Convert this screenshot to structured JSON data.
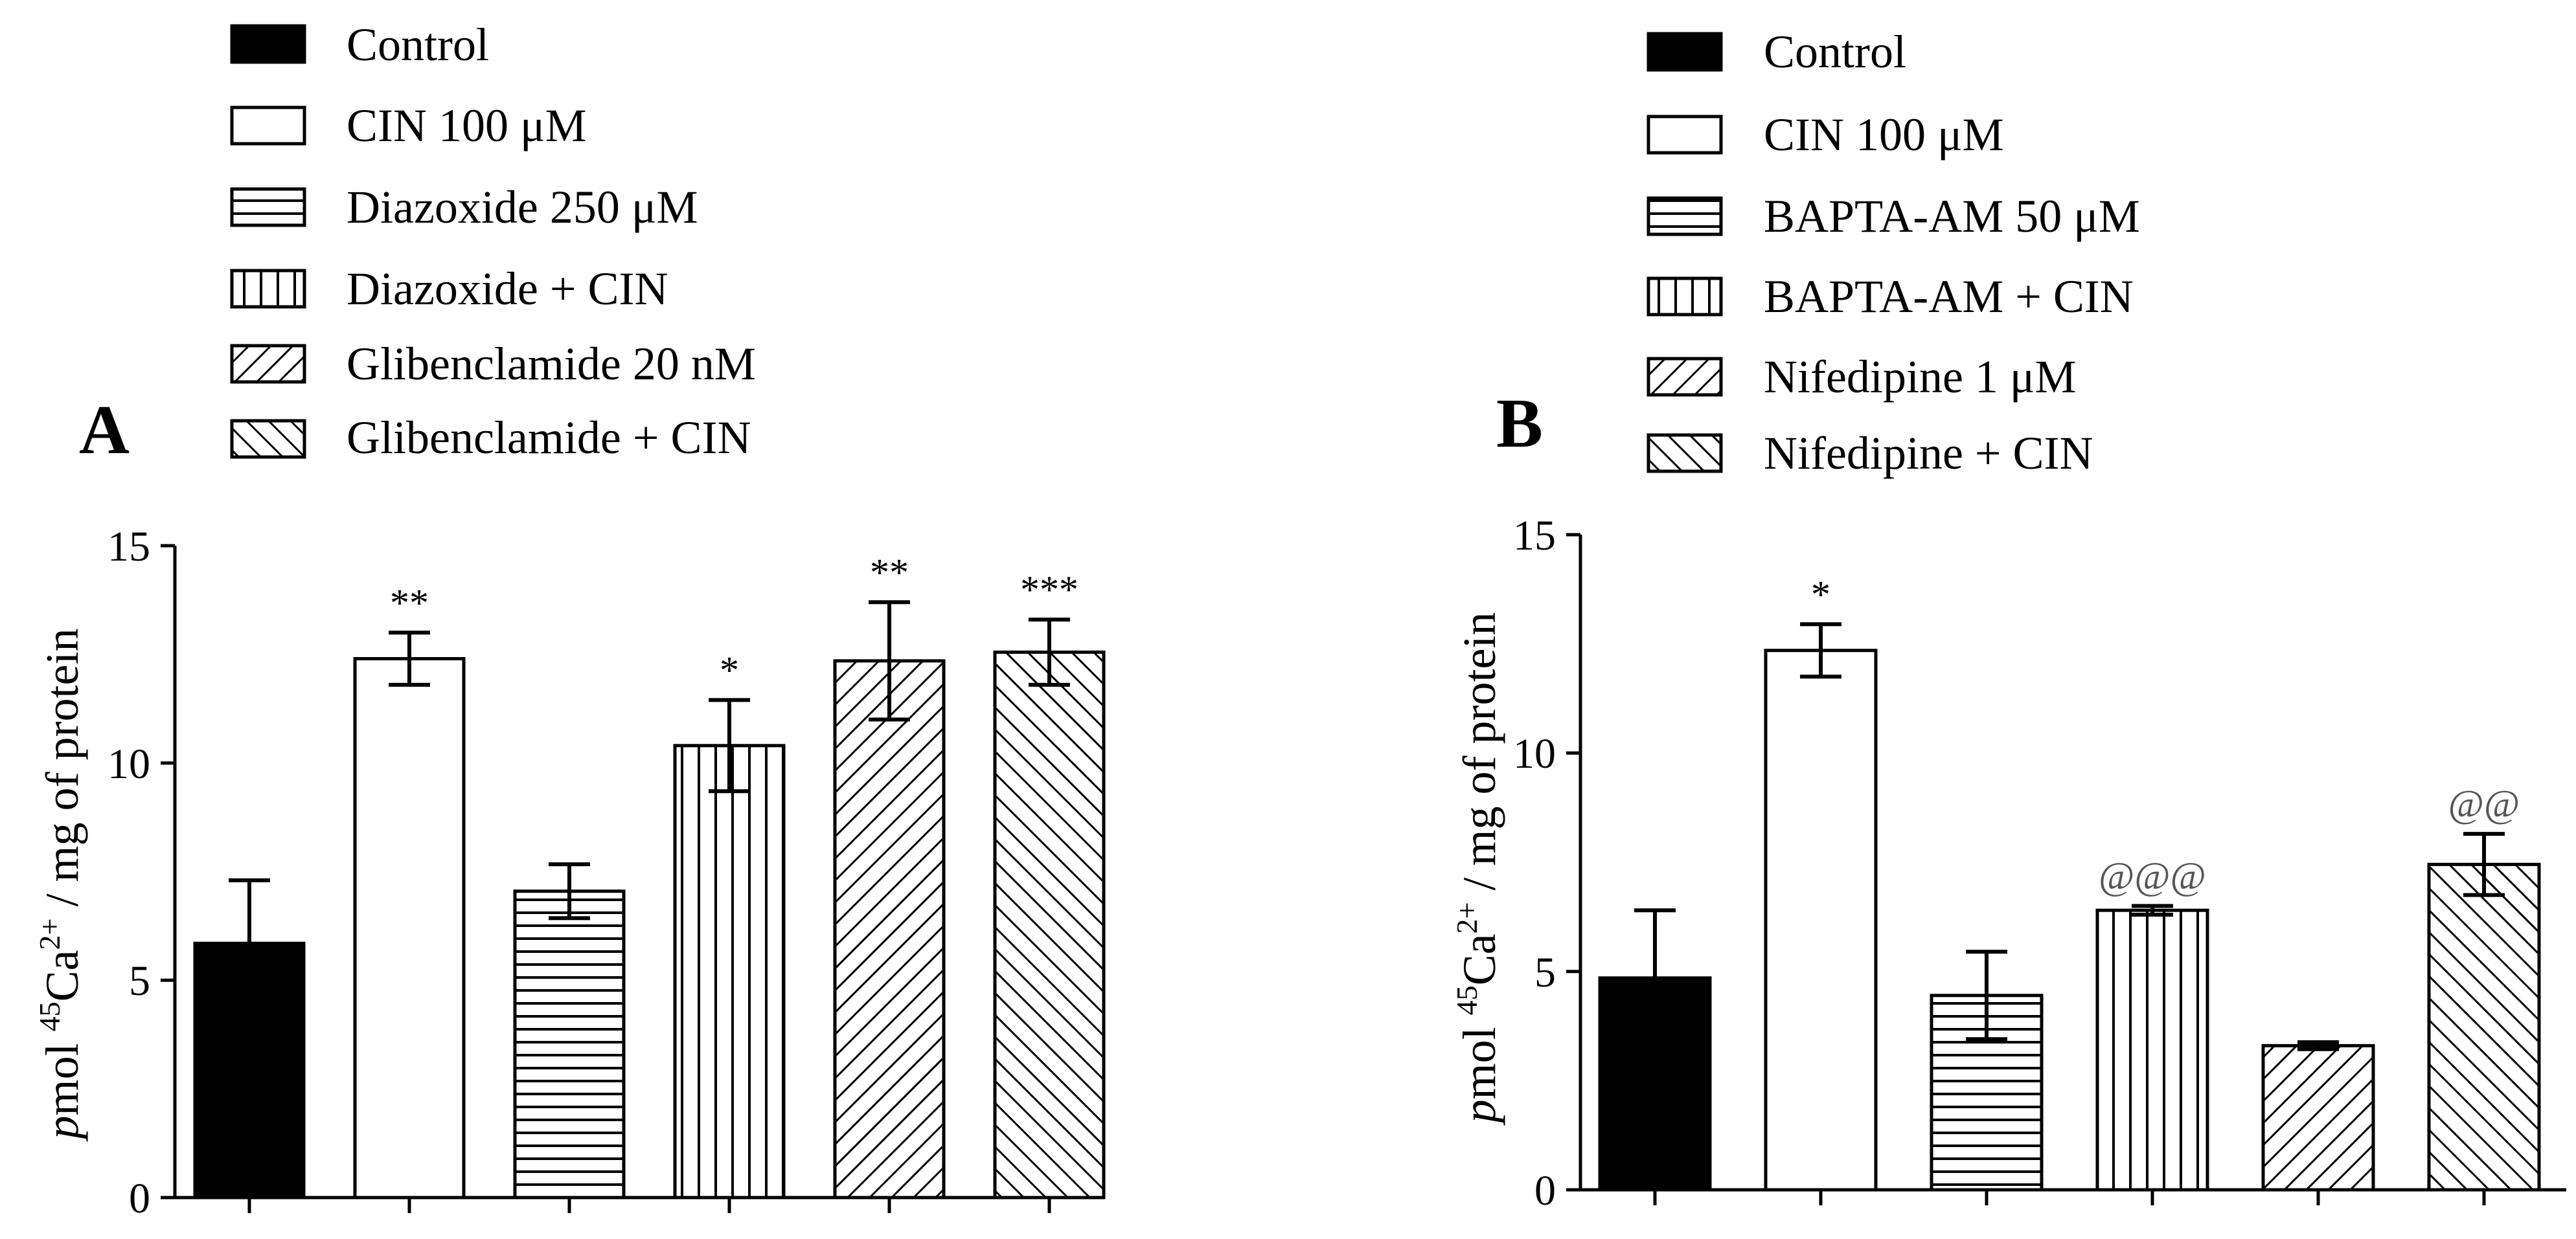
{
  "chart_data": [
    {
      "type": "bar",
      "panel_label": "A",
      "categories": [
        "Control",
        "CIN 100 μM",
        "Diazoxide 250 μM",
        "Diazoxide + CIN",
        "Glibenclamide 20 nM",
        "Glibenclamide + CIN"
      ],
      "values": [
        5.85,
        12.4,
        7.05,
        10.4,
        12.35,
        12.55
      ],
      "errors": [
        1.45,
        0.6,
        0.62,
        1.05,
        1.35,
        0.75
      ],
      "patterns": [
        "solid",
        "empty",
        "horizontal",
        "vertical",
        "diag-up",
        "diag-down"
      ],
      "annotations": [
        "",
        "**",
        "",
        "*",
        "**",
        "***"
      ],
      "ylim": [
        0,
        15
      ],
      "yticks": [
        "0",
        "5",
        "10",
        "15"
      ],
      "ylabel": {
        "italic": "p",
        "text1": "mol ",
        "sup1": "45",
        "text2": "Ca",
        "sup2": "2+",
        "text3": " / mg of protein"
      },
      "legend": "top-left"
    },
    {
      "type": "bar",
      "panel_label": "B",
      "categories": [
        "Control",
        "CIN 100 μM",
        "BAPTA-AM 50 μM",
        "BAPTA-AM + CIN",
        "Nifedipine 1 μM",
        "Nifedipine + CIN"
      ],
      "values": [
        4.85,
        12.35,
        4.45,
        6.4,
        3.3,
        7.45
      ],
      "errors": [
        1.55,
        0.6,
        1.0,
        0.1,
        0.08,
        0.7
      ],
      "patterns": [
        "solid",
        "empty",
        "horizontal",
        "vertical",
        "diag-up",
        "diag-down"
      ],
      "annotations": [
        "",
        "*",
        "",
        "@@@",
        "",
        "@@"
      ],
      "ylim": [
        0,
        15
      ],
      "yticks": [
        "0",
        "5",
        "10",
        "15"
      ],
      "ylabel": {
        "italic": "p",
        "text1": "mol ",
        "sup1": "45",
        "text2": "Ca",
        "sup2": "2+",
        "text3": " / mg of protein"
      },
      "legend": "top-left"
    }
  ]
}
